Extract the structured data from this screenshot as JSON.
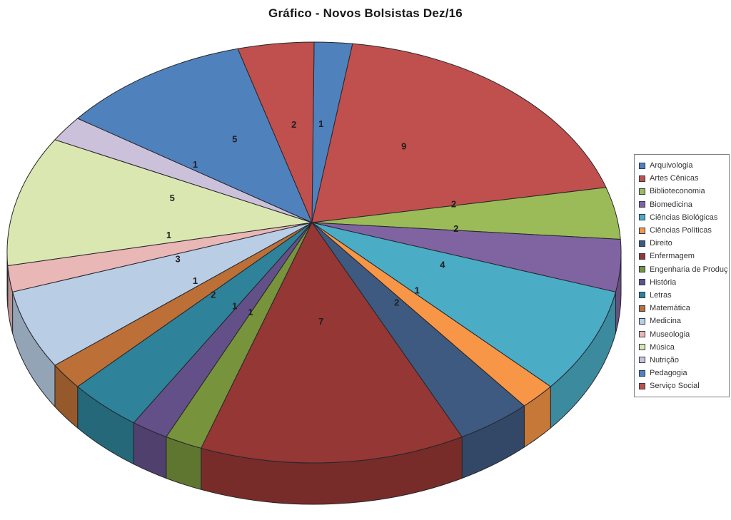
{
  "chart_data": {
    "type": "pie",
    "style": "3d-perspective",
    "title": "Gráfico - Novos Bolsistas Dez/16",
    "total": 50,
    "legend_position": "right",
    "data_labels": "values",
    "background_color": "#FFFFFF",
    "outline_color": "#26262b",
    "series": [
      {
        "label": "Arquivologia",
        "value": 1,
        "color": "#4F81BD"
      },
      {
        "label": "Artes Cênicas",
        "value": 9,
        "color": "#C0504D"
      },
      {
        "label": "Biblioteconomia",
        "value": 2,
        "color": "#9BBB59"
      },
      {
        "label": "Biomedicina",
        "value": 2,
        "color": "#8064A2"
      },
      {
        "label": "Ciências Biológicas",
        "value": 4,
        "color": "#4BACC6"
      },
      {
        "label": "Ciências Políticas",
        "value": 1,
        "color": "#F79646"
      },
      {
        "label": "Direito",
        "value": 2,
        "color": "#3E5A80"
      },
      {
        "label": "Enfermagem",
        "value": 7,
        "color": "#953734"
      },
      {
        "label": "Engenharia de Produção",
        "value": 1,
        "color": "#77933C"
      },
      {
        "label": "História",
        "value": 1,
        "color": "#635089"
      },
      {
        "label": "Letras",
        "value": 2,
        "color": "#2E8299"
      },
      {
        "label": "Matemática",
        "value": 1,
        "color": "#BC6F36"
      },
      {
        "label": "Medicina",
        "value": 3,
        "color": "#B9CDE5"
      },
      {
        "label": "Museologia",
        "value": 1,
        "color": "#E8B7B6"
      },
      {
        "label": "Música",
        "value": 5,
        "color": "#DBE7B1"
      },
      {
        "label": "Nutrição",
        "value": 1,
        "color": "#CCC1DA"
      },
      {
        "label": "Pedagogia",
        "value": 5,
        "color": "#4F81BD"
      },
      {
        "label": "Serviço Social",
        "value": 2,
        "color": "#C0504D"
      }
    ]
  }
}
